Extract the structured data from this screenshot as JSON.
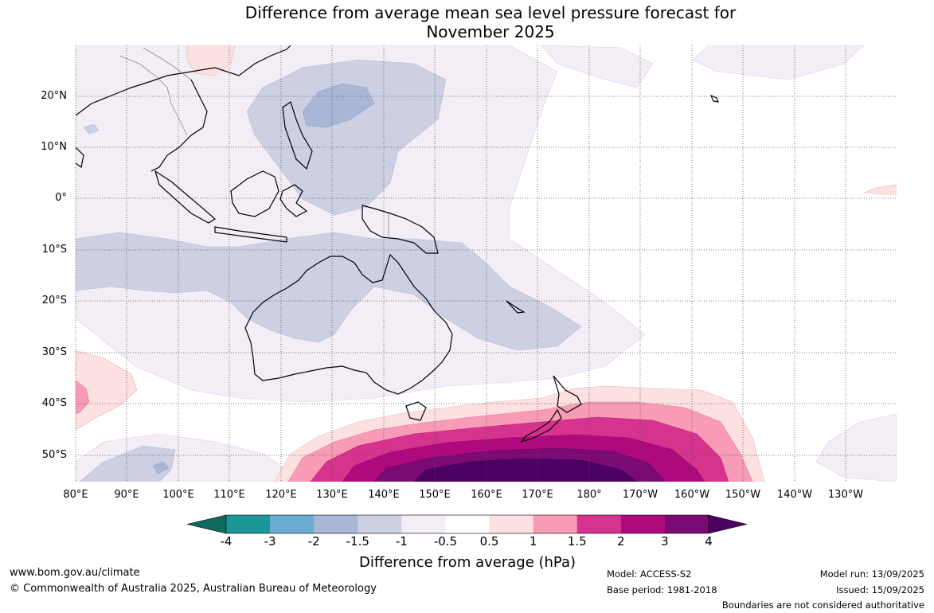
{
  "title": {
    "line1": "Difference from average mean sea level pressure forecast for",
    "line2": "November 2025"
  },
  "map": {
    "lat_labels": [
      "20°N",
      "10°N",
      "0°",
      "10°S",
      "20°S",
      "30°S",
      "40°S",
      "50°S"
    ],
    "lon_labels": [
      "80°E",
      "90°E",
      "100°E",
      "110°E",
      "120°E",
      "130°E",
      "140°E",
      "150°E",
      "160°E",
      "170°E",
      "180°",
      "170°W",
      "160°W",
      "150°W",
      "140°W",
      "130°W"
    ]
  },
  "colorbar": {
    "title": "Difference from average (hPa)",
    "tick_labels": [
      "-4",
      "-3",
      "-2",
      "-1.5",
      "-1",
      "-0.5",
      "0.5",
      "1",
      "1.5",
      "2",
      "3",
      "4"
    ],
    "colors": [
      "#0f6b5e",
      "#1c9696",
      "#6aacd2",
      "#a8b7d6",
      "#cdd0e3",
      "#f3eef6",
      "#ffffff",
      "#fde0e0",
      "#f79bb6",
      "#d6338f",
      "#ae0a7d",
      "#7b0a74",
      "#4c0063"
    ]
  },
  "footer": {
    "url": "www.bom.gov.au/climate",
    "copyright": "© Commonwealth of Australia 2025, Australian Bureau of Meteorology",
    "model": "Model: ACCESS-S2",
    "base_period": "Base period: 1981-2018",
    "model_run": "Model run: 13/09/2025",
    "issued": "Issued: 15/09/2025",
    "disclaimer": "Boundaries are not considered authoritative"
  }
}
